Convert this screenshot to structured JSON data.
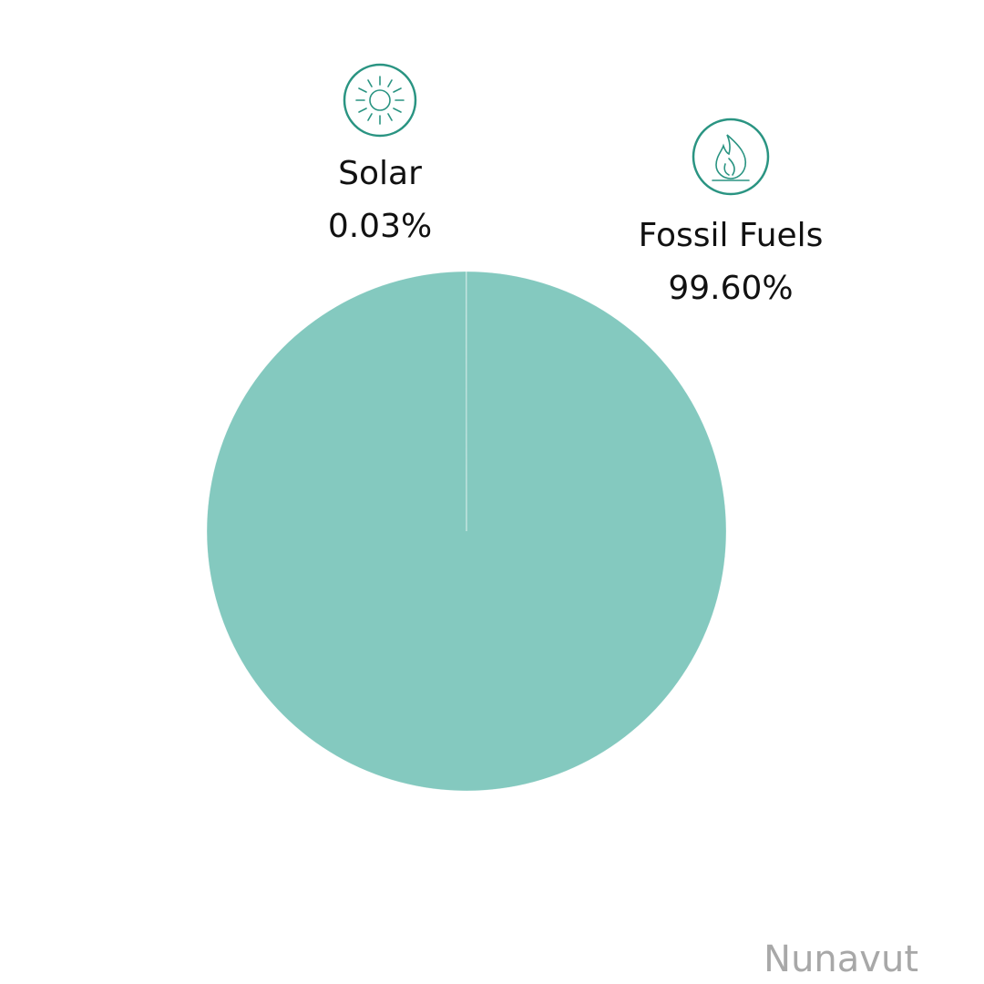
{
  "chart_data": {
    "type": "pie",
    "title": "Nunavut",
    "categories": [
      "Solar",
      "Fossil Fuels"
    ],
    "values": [
      0.03,
      99.6
    ],
    "value_labels": [
      "0.03%",
      "99.60%"
    ],
    "color": "#84c9bf"
  }
}
